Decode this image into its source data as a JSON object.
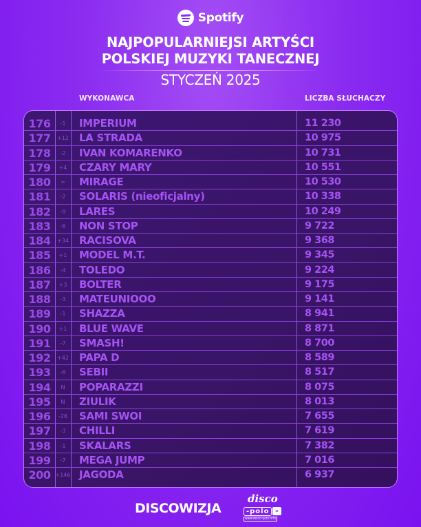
{
  "header": {
    "brand": "Spotify",
    "title_line1": "NAJPOPULARNIEJSI ARTYŚCI",
    "title_line2": "POLSKIEJ MUZYKI TANECZNEJ",
    "subtitle": "STYCZEŃ 2025"
  },
  "columns": {
    "artist": "WYKONAWCA",
    "listeners": "LICZBA SŁUCHACZY"
  },
  "rows": [
    {
      "rank": "176",
      "change": "-1",
      "artist": "IMPERIUM",
      "listeners": "11 230"
    },
    {
      "rank": "177",
      "change": "+12",
      "artist": "LA STRADA",
      "listeners": "10 975"
    },
    {
      "rank": "178",
      "change": "-2",
      "artist": "IVAN KOMARENKO",
      "listeners": "10 731"
    },
    {
      "rank": "179",
      "change": "+4",
      "artist": "CZARY MARY",
      "listeners": "10 551"
    },
    {
      "rank": "180",
      "change": "=",
      "artist": "MIRAGE",
      "listeners": "10 530"
    },
    {
      "rank": "181",
      "change": "-2",
      "artist": "SOLARIS (nieoficjalny)",
      "listeners": "10 338"
    },
    {
      "rank": "182",
      "change": "-9",
      "artist": "LARES",
      "listeners": "10 249"
    },
    {
      "rank": "183",
      "change": "-6",
      "artist": "NON STOP",
      "listeners": "9 722"
    },
    {
      "rank": "184",
      "change": "+34",
      "artist": "RACISOVA",
      "listeners": "9 368"
    },
    {
      "rank": "185",
      "change": "+1",
      "artist": "MODEL M.T.",
      "listeners": "9 345"
    },
    {
      "rank": "186",
      "change": "-4",
      "artist": "TOLEDO",
      "listeners": "9 224"
    },
    {
      "rank": "187",
      "change": "+3",
      "artist": "BOLTER",
      "listeners": "9 175"
    },
    {
      "rank": "188",
      "change": "-3",
      "artist": "MATEUNIOOO",
      "listeners": "9 141"
    },
    {
      "rank": "189",
      "change": "-1",
      "artist": "SHAZZA",
      "listeners": "8 941"
    },
    {
      "rank": "190",
      "change": "+1",
      "artist": "BLUE WAVE",
      "listeners": "8 871"
    },
    {
      "rank": "191",
      "change": "-7",
      "artist": "SMASH!",
      "listeners": "8 700"
    },
    {
      "rank": "192",
      "change": "+42",
      "artist": "PAPA D",
      "listeners": "8 589"
    },
    {
      "rank": "193",
      "change": "-6",
      "artist": "SEBII",
      "listeners": "8 517"
    },
    {
      "rank": "194",
      "change": "N",
      "artist": "POPARAZZI",
      "listeners": "8 075"
    },
    {
      "rank": "195",
      "change": "N",
      "artist": "ZIULIK",
      "listeners": "8 013"
    },
    {
      "rank": "196",
      "change": "-26",
      "artist": "SAMI SWOI",
      "listeners": "7 655"
    },
    {
      "rank": "197",
      "change": "-3",
      "artist": "CHILLI",
      "listeners": "7 619"
    },
    {
      "rank": "198",
      "change": "-1",
      "artist": "SKALARS",
      "listeners": "7 382"
    },
    {
      "rank": "199",
      "change": "-7",
      "artist": "MEGA JUMP",
      "listeners": "7 016"
    },
    {
      "rank": "200",
      "change": "+146",
      "artist": "JAGODA",
      "listeners": "6 937"
    }
  ],
  "footer": {
    "brand": "DISCOWIZJA",
    "partner_top": "disco",
    "partner_bottom": "-polo",
    "partner_arrow": "»",
    "partner_url": "www.disco-polo.info"
  },
  "colors": {
    "background": "#8a2bf0",
    "table_bg": "#3a1466",
    "table_border": "#c37bff",
    "text_accent": "#a553f5"
  }
}
